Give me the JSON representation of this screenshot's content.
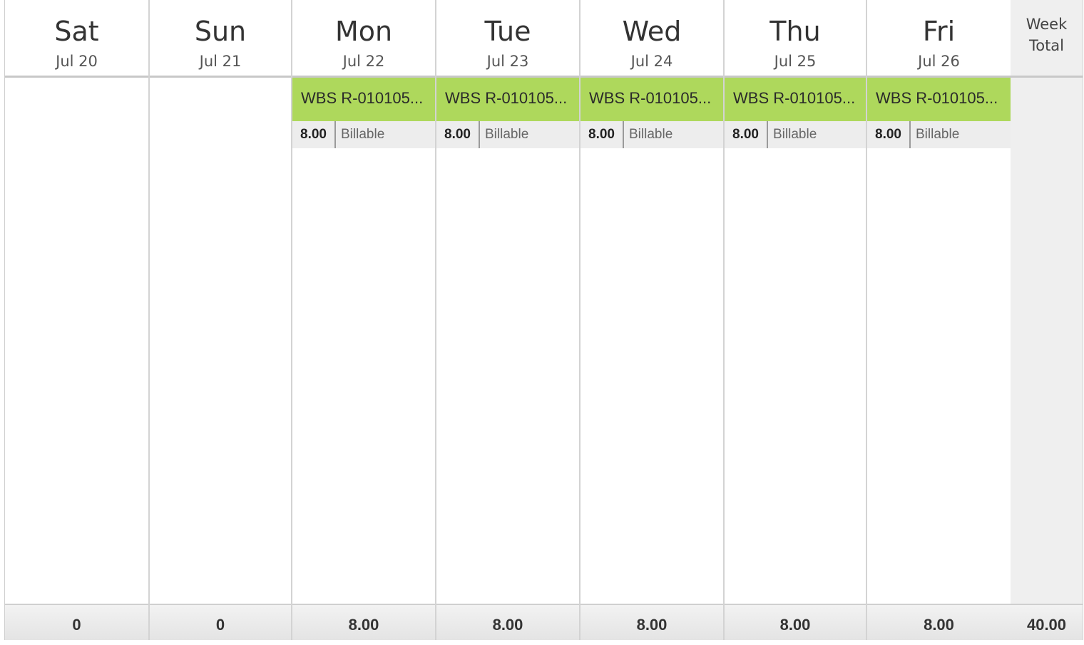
{
  "days": [
    {
      "name": "Sat",
      "date": "Jul 20",
      "total": "0",
      "entries": []
    },
    {
      "name": "Sun",
      "date": "Jul 21",
      "total": "0",
      "entries": []
    },
    {
      "name": "Mon",
      "date": "Jul 22",
      "total": "8.00",
      "entries": [
        {
          "title": "WBS R-010105...",
          "hours": "8.00",
          "type": "Billable"
        }
      ]
    },
    {
      "name": "Tue",
      "date": "Jul 23",
      "total": "8.00",
      "entries": [
        {
          "title": "WBS R-010105...",
          "hours": "8.00",
          "type": "Billable"
        }
      ]
    },
    {
      "name": "Wed",
      "date": "Jul 24",
      "total": "8.00",
      "entries": [
        {
          "title": "WBS R-010105...",
          "hours": "8.00",
          "type": "Billable"
        }
      ]
    },
    {
      "name": "Thu",
      "date": "Jul 25",
      "total": "8.00",
      "entries": [
        {
          "title": "WBS R-010105...",
          "hours": "8.00",
          "type": "Billable"
        }
      ]
    },
    {
      "name": "Fri",
      "date": "Jul 26",
      "total": "8.00",
      "entries": [
        {
          "title": "WBS R-010105...",
          "hours": "8.00",
          "type": "Billable"
        }
      ]
    }
  ],
  "week": {
    "header_line1": "Week",
    "header_line2": "Total",
    "total": "40.00"
  },
  "colors": {
    "entry_green": "#aed85c",
    "meta_gray": "#ededed",
    "week_column": "#efefef"
  }
}
